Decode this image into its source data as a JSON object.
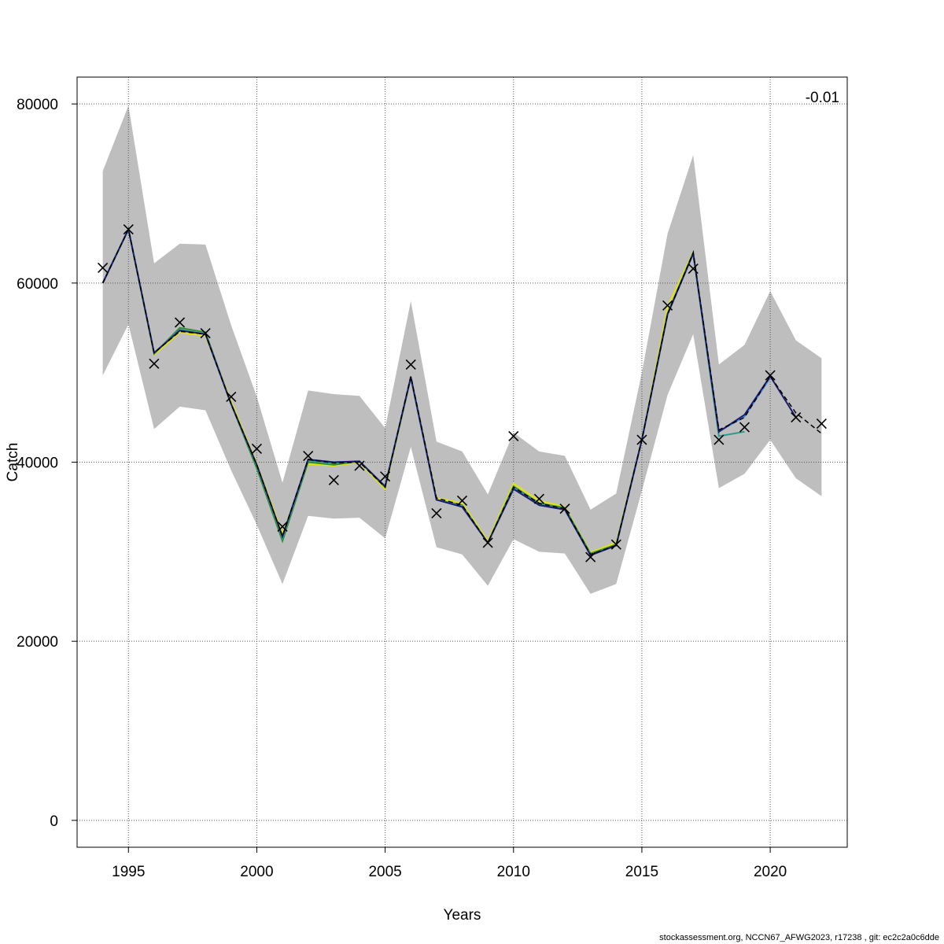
{
  "chart_data": {
    "type": "line",
    "xlabel": "Years",
    "ylabel": "Catch",
    "xlim": [
      1993,
      2023
    ],
    "ylim": [
      -3000,
      83000
    ],
    "x_ticks": [
      1995,
      2000,
      2005,
      2010,
      2015,
      2020
    ],
    "y_ticks": [
      0,
      20000,
      40000,
      60000,
      80000
    ],
    "grid": true,
    "corner_value": "-0.01",
    "colors": {
      "band": "#bebebe",
      "observed_marker": "#000000",
      "base_run": "#000000",
      "grid": "#555555"
    },
    "confidence_band": {
      "x": [
        1994,
        1995,
        1996,
        1997,
        1998,
        1999,
        2000,
        2001,
        2002,
        2003,
        2004,
        2005,
        2006,
        2007,
        2008,
        2009,
        2010,
        2011,
        2012,
        2013,
        2014,
        2015,
        2016,
        2017,
        2018,
        2019,
        2020,
        2021,
        2022
      ],
      "upper": [
        72500,
        79800,
        62200,
        64400,
        64300,
        55300,
        47300,
        37700,
        48000,
        47600,
        47400,
        43800,
        58000,
        42300,
        41200,
        36400,
        43300,
        41200,
        40700,
        34700,
        36500,
        50000,
        65500,
        74300,
        50900,
        53100,
        59100,
        53600,
        51600
      ],
      "lower": [
        49700,
        55400,
        43700,
        46200,
        45800,
        39100,
        33000,
        26400,
        34000,
        33700,
        33800,
        31500,
        41700,
        30500,
        29700,
        26200,
        31400,
        30000,
        29800,
        25300,
        26400,
        36800,
        47500,
        54300,
        37100,
        38700,
        42500,
        38200,
        36200
      ]
    },
    "observed": {
      "x": [
        1994,
        1995,
        1996,
        1997,
        1998,
        1999,
        2000,
        2001,
        2002,
        2003,
        2004,
        2005,
        2006,
        2007,
        2008,
        2009,
        2010,
        2011,
        2012,
        2013,
        2014,
        2015,
        2016,
        2017,
        2018,
        2019,
        2020,
        2021,
        2022
      ],
      "y": [
        61700,
        66000,
        51000,
        55600,
        54400,
        47300,
        41500,
        32800,
        40700,
        38000,
        39600,
        38400,
        50900,
        34300,
        35700,
        31000,
        42900,
        35900,
        34800,
        29400,
        30800,
        42500,
        57500,
        61600,
        42500,
        43900,
        49700,
        45000,
        44300
      ]
    },
    "series": [
      {
        "color": "#000000",
        "dashed": true,
        "end": 2022,
        "values": [
          60000,
          66000,
          52200,
          54600,
          54300,
          46500,
          39700,
          31700,
          40300,
          39900,
          40000,
          37200,
          49600,
          36000,
          35200,
          31000,
          37200,
          35400,
          34800,
          29700,
          30700,
          42500,
          56500,
          63400,
          43600,
          45000,
          49600,
          45500,
          43200
        ]
      },
      {
        "color": "#1d1d6e",
        "end": 2021,
        "values": [
          60000,
          66000,
          52200,
          54700,
          54300,
          46500,
          39700,
          31700,
          40300,
          40000,
          40100,
          37300,
          49500,
          35800,
          35000,
          31000,
          37000,
          35200,
          34700,
          29600,
          30700,
          42500,
          56500,
          63300,
          43400,
          45300,
          49600,
          45000
        ]
      },
      {
        "color": "#4a90e2",
        "end": 2020,
        "values": [
          60000,
          66000,
          52200,
          54700,
          54300,
          46500,
          39700,
          31700,
          40300,
          40000,
          40100,
          37300,
          49500,
          35800,
          35100,
          31000,
          37100,
          35200,
          34700,
          29600,
          30700,
          42500,
          56500,
          63300,
          43400,
          45100,
          49400
        ]
      },
      {
        "color": "#2e9b8f",
        "end": 2019,
        "values": [
          60000,
          66000,
          52200,
          54800,
          54300,
          46500,
          39600,
          31500,
          40200,
          39900,
          40100,
          37300,
          49500,
          35800,
          35100,
          31000,
          37100,
          35300,
          34800,
          29700,
          30700,
          42500,
          56500,
          63300,
          42900,
          43400
        ]
      },
      {
        "color": "#2f8f2f",
        "end": 2018,
        "values": [
          60000,
          66000,
          52100,
          55000,
          54500,
          46500,
          39300,
          31200,
          40000,
          39700,
          40100,
          37200,
          49400,
          35800,
          35200,
          31000,
          37300,
          35400,
          34900,
          29800,
          30800,
          42500,
          56600,
          63400,
          43200
        ]
      },
      {
        "color": "#e6e600",
        "end": 2017,
        "values": [
          60000,
          66000,
          52000,
          54500,
          54100,
          46800,
          39800,
          32000,
          39800,
          39600,
          40000,
          37000,
          49400,
          36000,
          35400,
          31200,
          37600,
          35700,
          35000,
          29900,
          31000,
          42500,
          57300,
          63500
        ]
      }
    ]
  },
  "footer_text": "stockassessment.org, NCCN67_AFWG2023, r17238 , git: ec2c2a0c6dde"
}
